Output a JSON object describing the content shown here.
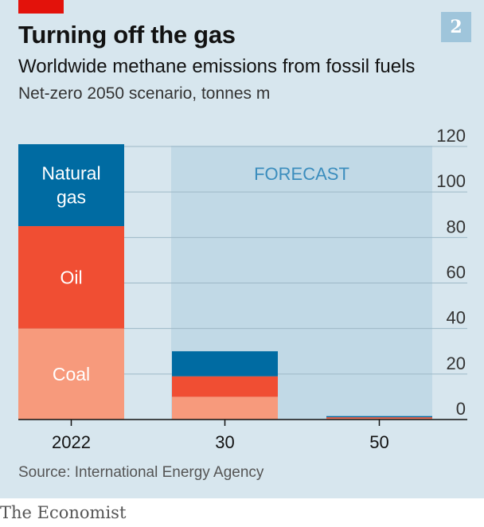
{
  "header": {
    "title": "Turning off the gas",
    "badge": "2",
    "subtitle": "Worldwide methane emissions from fossil fuels",
    "unit": "Net-zero 2050 scenario, tonnes m"
  },
  "footer": {
    "source": "Source: International Energy Agency",
    "brand": "The Economist"
  },
  "colors": {
    "panel_background": "#d7e6ee",
    "forecast_shade": "#c1d9e6",
    "natural_gas": "#006ba2",
    "oil": "#f04e33",
    "coal": "#f79a7c",
    "brand_red": "#e3120b"
  },
  "chart_data": {
    "type": "bar",
    "stacked": true,
    "categories": [
      "2022",
      "30",
      "50"
    ],
    "series": [
      {
        "name": "Coal",
        "color": "#f79a7c",
        "values": [
          40,
          10,
          0.5
        ]
      },
      {
        "name": "Oil",
        "color": "#f04e33",
        "values": [
          45,
          9,
          0.5
        ]
      },
      {
        "name": "Natural gas",
        "color": "#006ba2",
        "values": [
          36,
          11,
          0.5
        ]
      }
    ],
    "ylim": [
      0,
      120
    ],
    "yticks": [
      0,
      20,
      40,
      60,
      80,
      100,
      120
    ],
    "ytick_labels": [
      "0",
      "20",
      "40",
      "60",
      "80",
      "100",
      "120"
    ],
    "y_axis_side": "right",
    "grid": true,
    "forecast_label": "FORECAST",
    "forecast_start_category": "30",
    "inline_series_labels": [
      "Natural gas",
      "Oil",
      "Coal"
    ],
    "inline_label_lines": {
      "Natural gas": [
        "Natural",
        "gas"
      ],
      "Oil": [
        "Oil"
      ],
      "Coal": [
        "Coal"
      ]
    }
  }
}
